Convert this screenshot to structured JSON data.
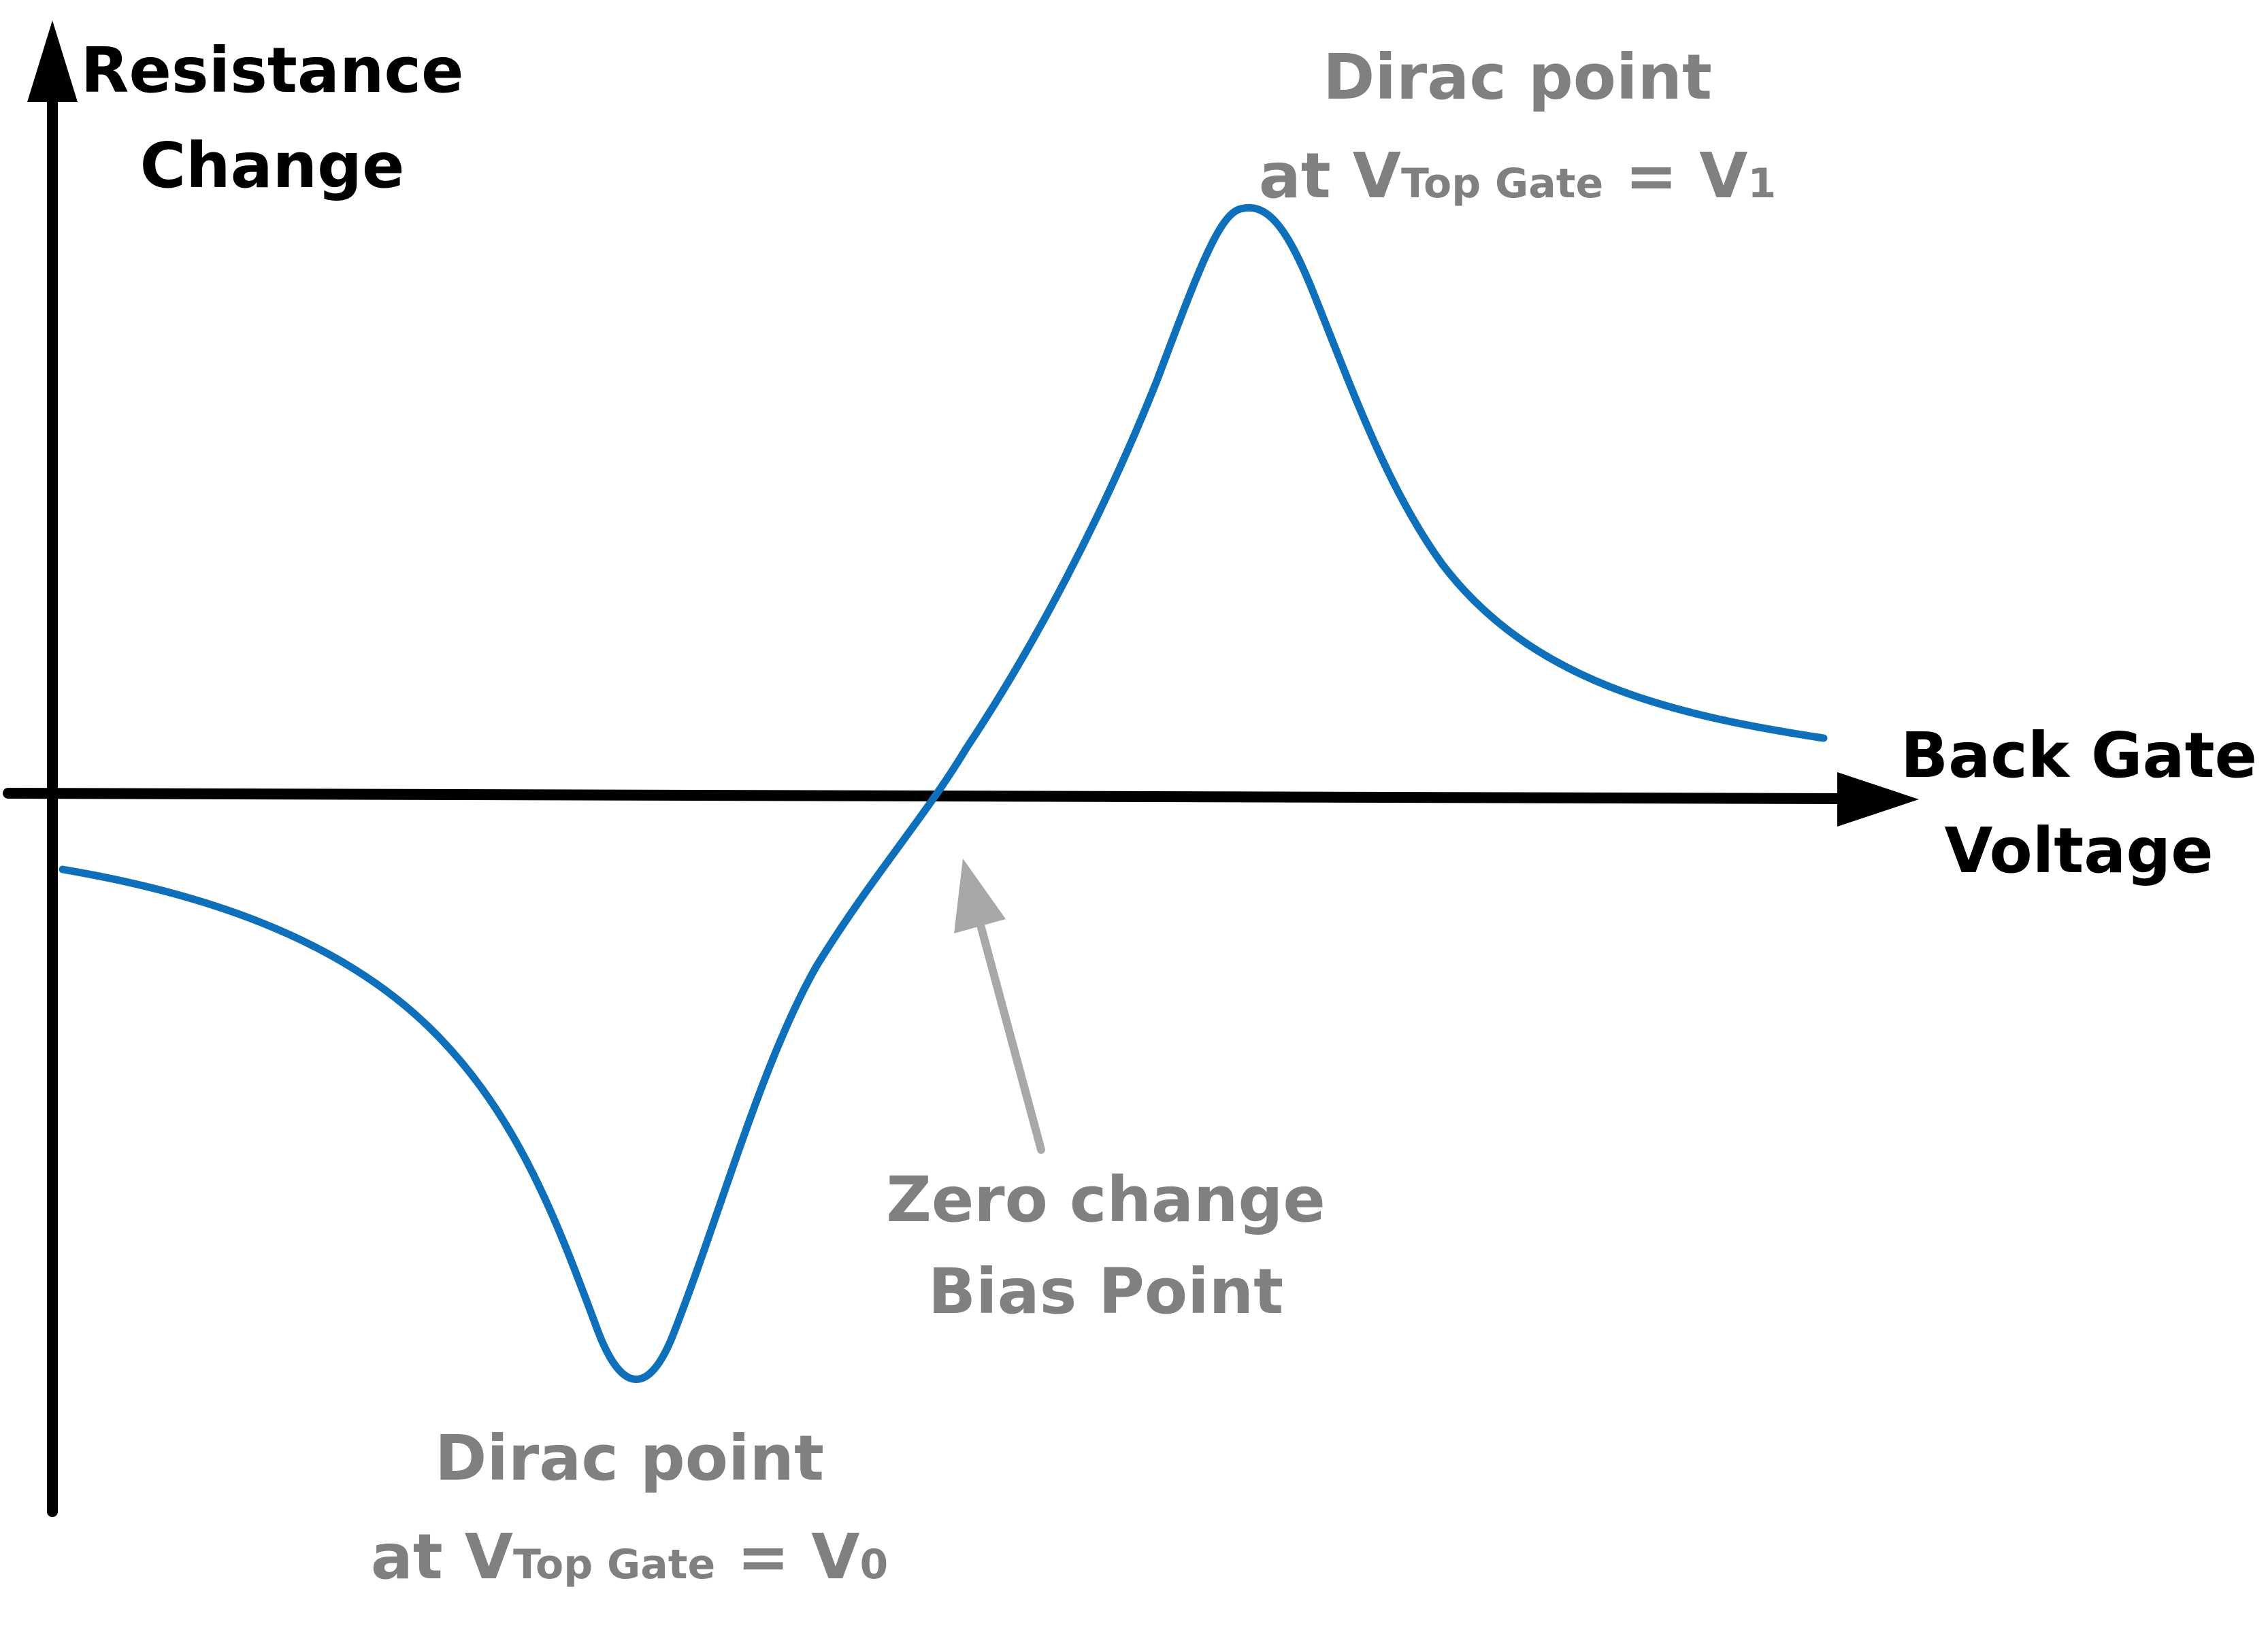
{
  "colors": {
    "axis": "#000000",
    "curve": "#0e6fbb",
    "annotation": "#808080",
    "arrow_annotation": "#a8a8a8"
  },
  "axes": {
    "y_label_line1": "Resistance",
    "y_label_line2": "Change",
    "x_label_line1": "Back Gate",
    "x_label_line2": "Voltage"
  },
  "annotations": {
    "top_dirac_line1": "Dirac point",
    "top_dirac_at": "at V",
    "top_dirac_sub": "Top Gate",
    "top_dirac_eq": " = V",
    "top_dirac_index": "1",
    "bottom_dirac_line1": "Dirac point",
    "bottom_dirac_at": "at V",
    "bottom_dirac_sub": "Top Gate",
    "bottom_dirac_eq": " = V",
    "bottom_dirac_index": "0",
    "zero_line1": "Zero change",
    "zero_line2": "Bias Point"
  }
}
